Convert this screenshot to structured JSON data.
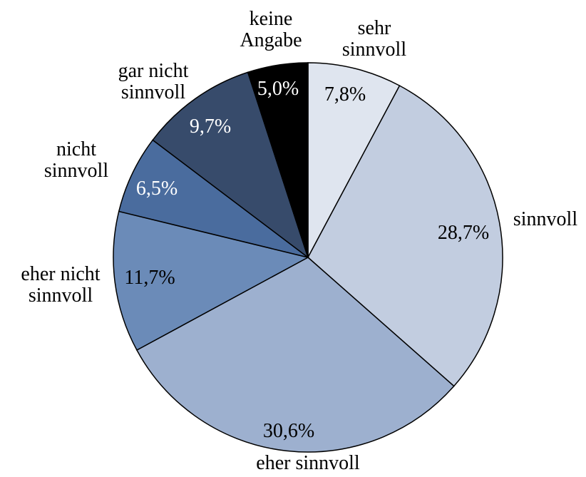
{
  "chart_data": {
    "type": "pie",
    "categories": [
      "sehr\nsinnvoll",
      "sinnvoll",
      "eher sinnvoll",
      "eher nicht\nsinnvoll",
      "nicht\nsinnvoll",
      "gar nicht\nsinnvoll",
      "keine\nAngabe"
    ],
    "values": [
      7.8,
      28.7,
      30.6,
      11.7,
      6.5,
      9.7,
      5.0
    ],
    "value_labels": [
      "7,8%",
      "28,7%",
      "30,6%",
      "11,7%",
      "6,5%",
      "9,7%",
      "5,0%"
    ],
    "colors": [
      "#dfe5ef",
      "#c2cde0",
      "#9db0cf",
      "#6b8bb8",
      "#4a6c9e",
      "#374b6b",
      "#000000"
    ]
  }
}
